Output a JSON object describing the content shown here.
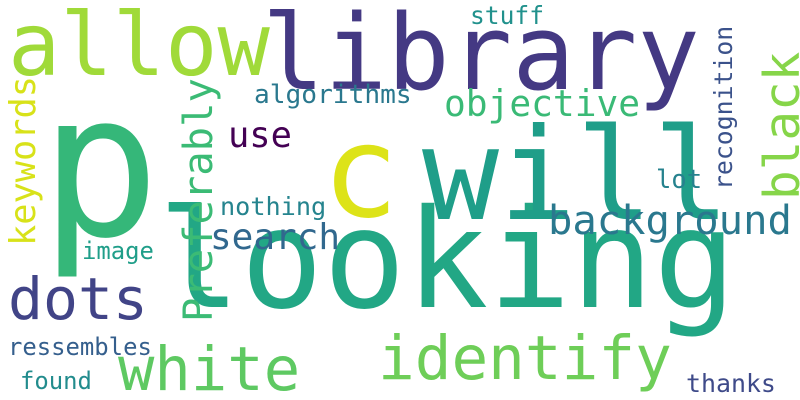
{
  "words": [
    {
      "id": "p",
      "text": "p",
      "color": "#35b779"
    },
    {
      "id": "looking",
      "text": "looking",
      "color": "#22a785"
    },
    {
      "id": "library",
      "text": "library",
      "color": "#443983"
    },
    {
      "id": "c",
      "text": "c",
      "color": "#dde318"
    },
    {
      "id": "will",
      "text": "will",
      "color": "#1f9e89"
    },
    {
      "id": "allow",
      "text": "allow",
      "color": "#a0da39"
    },
    {
      "id": "identify",
      "text": "identify",
      "color": "#6ece58"
    },
    {
      "id": "white",
      "text": "white",
      "color": "#5ec962"
    },
    {
      "id": "black",
      "text": "black",
      "color": "#86d549"
    },
    {
      "id": "dots",
      "text": "dots",
      "color": "#414487"
    },
    {
      "id": "background",
      "text": "background",
      "color": "#2a788e"
    },
    {
      "id": "preferably",
      "text": "Preferably",
      "color": "#3bbb75"
    },
    {
      "id": "objective",
      "text": "objective",
      "color": "#3aba76"
    },
    {
      "id": "search",
      "text": "search",
      "color": "#31688e"
    },
    {
      "id": "keywords",
      "text": "keywords",
      "color": "#d8e219"
    },
    {
      "id": "use",
      "text": "use",
      "color": "#440154"
    },
    {
      "id": "algorithms",
      "text": "algorithms",
      "color": "#2a788e"
    },
    {
      "id": "recognition",
      "text": "recognition",
      "color": "#3b528b"
    },
    {
      "id": "lot",
      "text": "lot",
      "color": "#26828e"
    },
    {
      "id": "nothing",
      "text": "nothing",
      "color": "#25848e"
    },
    {
      "id": "image",
      "text": "image",
      "color": "#1f9e89"
    },
    {
      "id": "stuff",
      "text": "stuff",
      "color": "#21918c"
    },
    {
      "id": "ressembles",
      "text": "ressembles",
      "color": "#355f8d"
    },
    {
      "id": "found",
      "text": "found",
      "color": "#228c8d"
    },
    {
      "id": "thanks",
      "text": "thanks",
      "color": "#3e4a89"
    }
  ]
}
